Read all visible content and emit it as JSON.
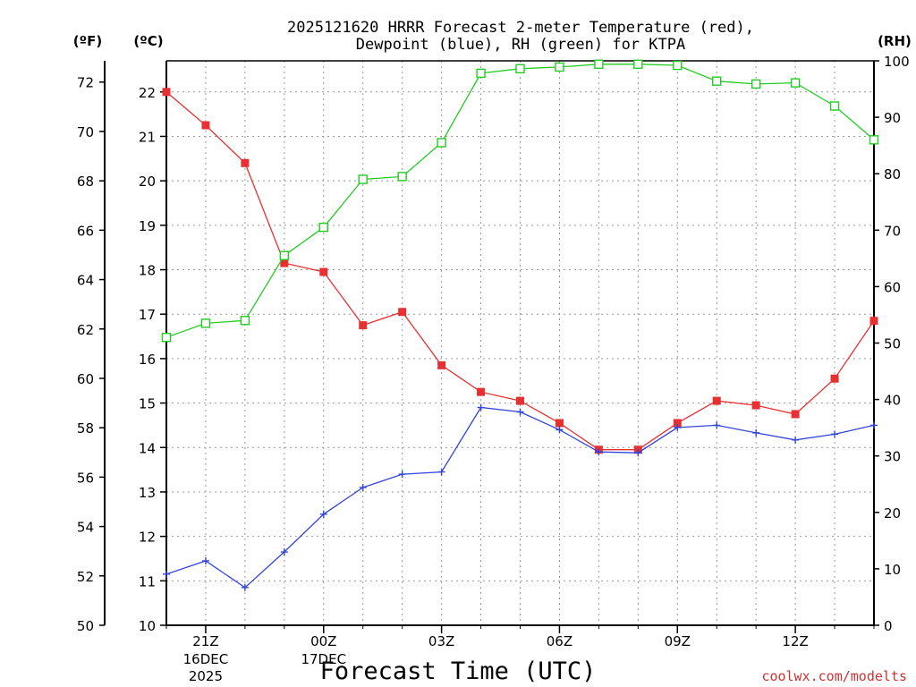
{
  "chart_data": {
    "type": "line",
    "title_line1": "2025121620 HRRR Forecast 2-meter Temperature (red),",
    "title_line2": "Dewpoint (blue), RH (green) for KTPA",
    "xlabel": "Forecast Time (UTC)",
    "credit": "coolwx.com/modelts",
    "units": {
      "f": "(ºF)",
      "c": "(ºC)",
      "rh": "(RH)"
    },
    "x_ticks": [
      {
        "hour": 1,
        "label": "21Z",
        "date": [
          "16DEC",
          "2025"
        ]
      },
      {
        "hour": 4,
        "label": "00Z",
        "date": [
          "17DEC"
        ]
      },
      {
        "hour": 7,
        "label": "03Z"
      },
      {
        "hour": 10,
        "label": "06Z"
      },
      {
        "hour": 13,
        "label": "09Z"
      },
      {
        "hour": 16,
        "label": "12Z"
      }
    ],
    "x_range": [
      0,
      18
    ],
    "celsius_axis": {
      "min": 10,
      "max": 22.7,
      "ticks": [
        10,
        11,
        12,
        13,
        14,
        15,
        16,
        17,
        18,
        19,
        20,
        21,
        22
      ]
    },
    "fahrenheit_axis": {
      "min": 50,
      "max": 72.86,
      "ticks": [
        50,
        52,
        54,
        56,
        58,
        60,
        62,
        64,
        66,
        68,
        70,
        72
      ]
    },
    "rh_axis": {
      "min": 0,
      "max": 100,
      "ticks": [
        0,
        10,
        20,
        30,
        40,
        50,
        60,
        70,
        80,
        90,
        100
      ]
    },
    "series": [
      {
        "name": "Temperature",
        "axis": "c",
        "color": "#e83030",
        "marker": "filled-square",
        "values": [
          22.0,
          21.25,
          20.4,
          18.15,
          17.95,
          16.75,
          17.05,
          15.85,
          15.25,
          15.05,
          14.55,
          13.95,
          13.95,
          14.55,
          15.05,
          14.95,
          14.75,
          15.55,
          16.85
        ]
      },
      {
        "name": "Dewpoint",
        "axis": "c",
        "color": "#3344dd",
        "marker": "plus",
        "values": [
          11.15,
          11.45,
          10.85,
          11.65,
          12.5,
          13.1,
          13.4,
          13.45,
          14.9,
          14.8,
          14.4,
          13.9,
          13.88,
          14.45,
          14.5,
          14.33,
          14.17,
          14.3,
          14.5
        ]
      },
      {
        "name": "RH",
        "axis": "rh",
        "color": "#22cc22",
        "marker": "open-square",
        "values": [
          51,
          53.5,
          54,
          65.5,
          70.5,
          79,
          79.5,
          85.5,
          97.8,
          98.6,
          98.9,
          99.4,
          99.4,
          99.2,
          96.4,
          95.9,
          96.1,
          92,
          86
        ]
      }
    ]
  }
}
